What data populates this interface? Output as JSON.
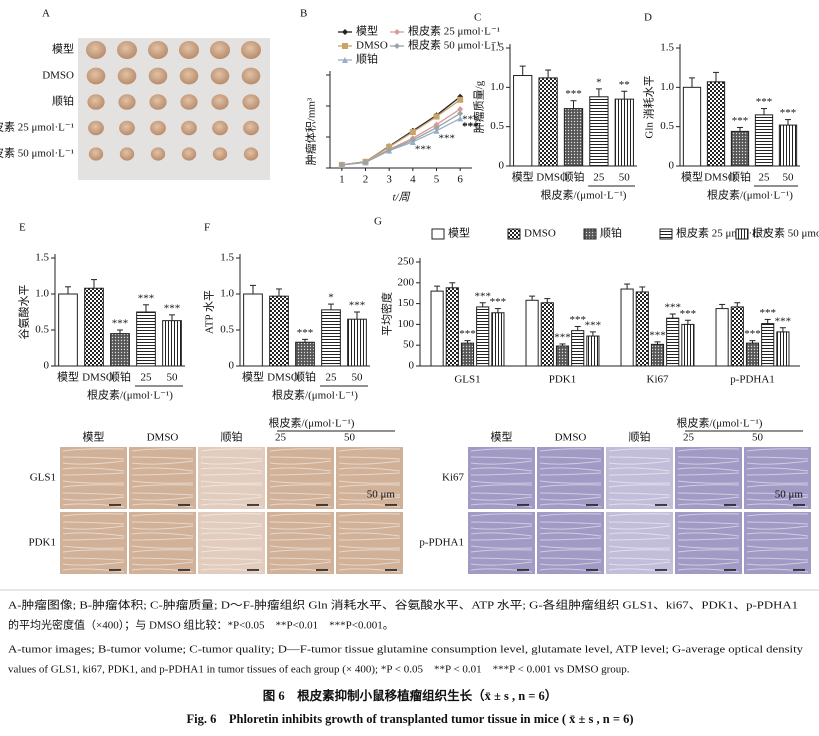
{
  "tumor_images": {
    "label": "A",
    "rows": [
      "模型",
      "DMSO",
      "顺铂",
      "根皮素 25 μmol·L⁻¹",
      "根皮素 50 μmol·L⁻¹"
    ]
  },
  "chart_data": [
    {
      "type": "line",
      "label": "B",
      "ylabel": "肿瘤体积/mm³",
      "xlabel": "t/周",
      "x": [
        1,
        2,
        3,
        4,
        5,
        6
      ],
      "xlim": [
        0.5,
        6.5
      ],
      "xticks": [
        1,
        2,
        3,
        4,
        5,
        6
      ],
      "ylim": [
        0,
        1500
      ],
      "yticks": [
        0,
        500,
        1000,
        1500
      ],
      "series": [
        {
          "name": "模型",
          "color": "#222222",
          "marker": "diamond",
          "values": [
            50,
            100,
            350,
            600,
            850,
            1150
          ],
          "significance": [
            null,
            null,
            null,
            null,
            null,
            null
          ]
        },
        {
          "name": "DMSO",
          "color": "#c8a46a",
          "marker": "square",
          "values": [
            50,
            100,
            340,
            580,
            830,
            1100
          ],
          "significance": [
            null,
            null,
            null,
            null,
            null,
            null
          ]
        },
        {
          "name": "顺铂",
          "color": "#97aec8",
          "marker": "triangle",
          "values": [
            50,
            90,
            280,
            420,
            600,
            800
          ],
          "significance": [
            null,
            null,
            null,
            "***",
            "***",
            "***"
          ]
        },
        {
          "name": "根皮素 25 μmol·L⁻¹",
          "color": "#d99a9a",
          "marker": "diamond",
          "values": [
            50,
            95,
            300,
            480,
            700,
            950
          ],
          "significance": [
            null,
            null,
            null,
            null,
            null,
            "***"
          ]
        },
        {
          "name": "根皮素 50 μmol·L⁻¹",
          "color": "#9aa4a4",
          "marker": "diamond",
          "values": [
            50,
            90,
            290,
            450,
            650,
            880
          ],
          "significance": [
            null,
            null,
            null,
            null,
            null,
            "***"
          ]
        }
      ]
    },
    {
      "type": "bar",
      "label": "C",
      "ylabel": "肿瘤质量/g",
      "categories": [
        "模型",
        "DMSO",
        "顺铂",
        "25",
        "50"
      ],
      "group_label": "根皮素/(μmol·L⁻¹)",
      "patterns": [
        "blank",
        "check",
        "dots",
        "hstripe",
        "vstripe"
      ],
      "ylim": [
        0,
        1.5
      ],
      "yticks": [
        0,
        0.5,
        {
          "value": 1,
          "label": "1.0"
        },
        1.5
      ],
      "values": [
        1.15,
        1.12,
        0.73,
        0.88,
        0.85
      ],
      "errors": [
        0.12,
        0.1,
        0.1,
        0.1,
        0.1
      ],
      "significance": [
        null,
        null,
        "***",
        "*",
        "**"
      ]
    },
    {
      "type": "bar",
      "label": "D",
      "ylabel": "Gln 消耗水平",
      "categories": [
        "模型",
        "DMSO",
        "顺铂",
        "25",
        "50"
      ],
      "group_label": "根皮素/(μmol·L⁻¹)",
      "patterns": [
        "blank",
        "check",
        "dots",
        "hstripe",
        "vstripe"
      ],
      "ylim": [
        0,
        1.5
      ],
      "yticks": [
        0,
        0.5,
        {
          "value": 1,
          "label": "1.0"
        },
        1.5
      ],
      "values": [
        1.0,
        1.07,
        0.44,
        0.65,
        0.52
      ],
      "errors": [
        0.12,
        0.12,
        0.05,
        0.08,
        0.07
      ],
      "significance": [
        null,
        null,
        "***",
        "***",
        "***"
      ]
    },
    {
      "type": "bar",
      "label": "E",
      "ylabel": "谷氨酸水平",
      "categories": [
        "模型",
        "DMSO",
        "顺铂",
        "25",
        "50"
      ],
      "group_label": "根皮素/(μmol·L⁻¹)",
      "patterns": [
        "blank",
        "check",
        "dots",
        "hstripe",
        "vstripe"
      ],
      "ylim": [
        0,
        1.5
      ],
      "yticks": [
        0,
        0.5,
        {
          "value": 1,
          "label": "1.0"
        },
        1.5
      ],
      "values": [
        1.0,
        1.08,
        0.45,
        0.75,
        0.63
      ],
      "errors": [
        0.1,
        0.12,
        0.05,
        0.1,
        0.08
      ],
      "significance": [
        null,
        null,
        "***",
        "***",
        "***"
      ]
    },
    {
      "type": "bar",
      "label": "F",
      "ylabel": "ATP 水平",
      "categories": [
        "模型",
        "DMSO",
        "顺铂",
        "25",
        "50"
      ],
      "group_label": "根皮素/(μmol·L⁻¹)",
      "patterns": [
        "blank",
        "check",
        "dots",
        "hstripe",
        "vstripe"
      ],
      "ylim": [
        0,
        1.5
      ],
      "yticks": [
        0,
        0.5,
        {
          "value": 1,
          "label": "1.0"
        },
        1.5
      ],
      "values": [
        1.0,
        0.97,
        0.33,
        0.78,
        0.65
      ],
      "errors": [
        0.12,
        0.1,
        0.04,
        0.08,
        0.1
      ],
      "significance": [
        null,
        null,
        "***",
        "*",
        "***"
      ]
    },
    {
      "type": "grouped-bar",
      "label": "G",
      "ylabel": "平均密度",
      "categories": [
        "GLS1",
        "PDK1",
        "Ki67",
        "p-PDHA1"
      ],
      "ylim": [
        0,
        250
      ],
      "yticks": [
        0,
        50,
        100,
        150,
        200,
        250
      ],
      "series": [
        {
          "name": "模型",
          "pattern": "blank",
          "values": [
            180,
            158,
            185,
            138
          ],
          "errors": [
            12,
            10,
            12,
            10
          ],
          "significance": [
            null,
            null,
            null,
            null
          ]
        },
        {
          "name": "DMSO",
          "pattern": "check",
          "values": [
            188,
            152,
            178,
            142
          ],
          "errors": [
            12,
            10,
            12,
            10
          ],
          "significance": [
            null,
            null,
            null,
            null
          ]
        },
        {
          "name": "顺铂",
          "pattern": "dots",
          "values": [
            55,
            48,
            52,
            55
          ],
          "errors": [
            6,
            5,
            6,
            6
          ],
          "significance": [
            "***",
            "***",
            "***",
            "***"
          ]
        },
        {
          "name": "根皮素 25 μmol·L⁻¹",
          "pattern": "hstripe",
          "values": [
            142,
            85,
            115,
            102
          ],
          "errors": [
            10,
            10,
            10,
            10
          ],
          "significance": [
            "***",
            "***",
            "***",
            "***"
          ]
        },
        {
          "name": "根皮素 50 μmol·L⁻¹",
          "pattern": "vstripe",
          "values": [
            128,
            72,
            100,
            82
          ],
          "errors": [
            10,
            10,
            10,
            10
          ],
          "significance": [
            "***",
            "***",
            "***",
            "***"
          ]
        }
      ]
    }
  ],
  "micrographs": [
    {
      "columns": [
        "模型",
        "DMSO",
        "顺铂",
        "25",
        "50"
      ],
      "group_label": "根皮素/(μmol·L⁻¹)",
      "rows": [
        "GLS1",
        "PDK1"
      ],
      "scale": "50 μm",
      "tint": "#c9a386"
    },
    {
      "columns": [
        "模型",
        "DMSO",
        "顺铂",
        "25",
        "50"
      ],
      "group_label": "根皮素/(μmol·L⁻¹)",
      "rows": [
        "Ki67",
        "p-PDHA1"
      ],
      "scale": "50 μm",
      "tint": "#8f88bb"
    }
  ],
  "caption": {
    "zh": [
      "A-肿瘤图像; B-肿瘤体积; C-肿瘤质量; D～F-肿瘤组织 Gln 消耗水平、谷氨酸水平、ATP 水平; G-各组肿瘤组织 GLS1、ki67、PDK1、p-PDHA1",
      "的平均光密度值（×400）；与 DMSO 组比较：*P<0.05　**P<0.01　***P<0.001。"
    ],
    "en": [
      "A-tumor images; B-tumor volume; C-tumor quality; D—F-tumor tissue glutamine consumption level, glutamate level, ATP level; G-average optical density",
      "values of GLS1, ki67, PDK1, and p-PDHA1 in tumor tissues of each group (× 400); *P < 0.05　**P < 0.01　***P < 0.001 vs DMSO group."
    ],
    "title_zh": "图 6　根皮素抑制小鼠移植瘤组织生长（x̄ ± s , n = 6）",
    "title_en": "Fig. 6　Phloretin inhibits growth of transplanted tumor tissue in mice ( x̄ ± s , n = 6)"
  }
}
